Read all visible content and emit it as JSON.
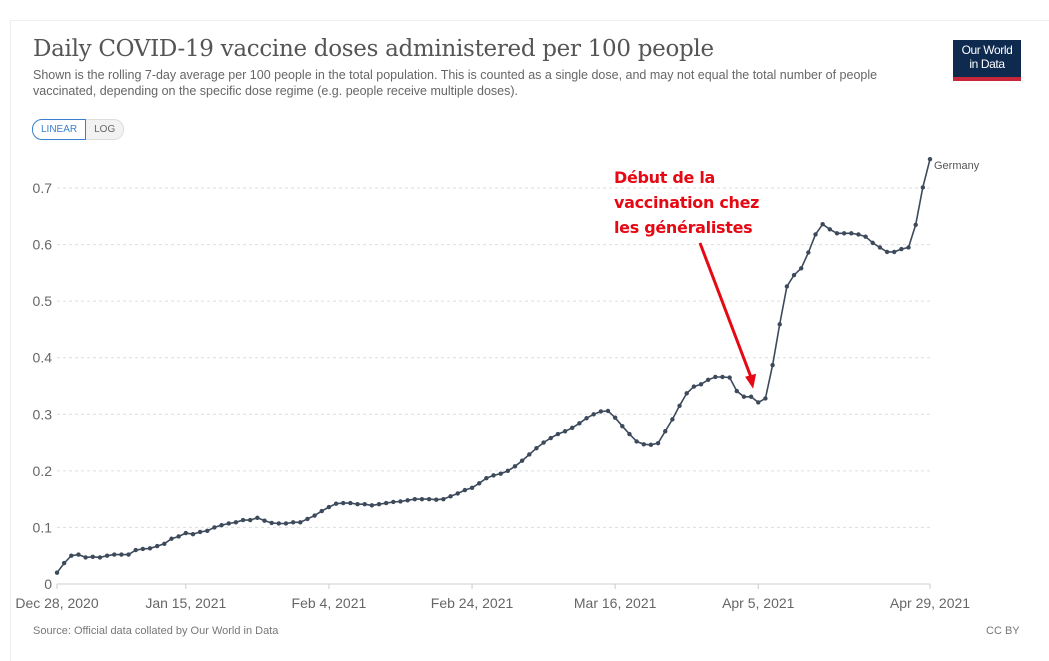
{
  "header": {
    "title": "Daily COVID-19 vaccine doses administered per 100 people",
    "subtitle": "Shown is the rolling 7-day average per 100 people in the total population. This is counted as a single dose, and may not equal the total number of people vaccinated, depending on the specific dose regime (e.g. people receive multiple doses).",
    "logo_line1": "Our World",
    "logo_line2": "in Data"
  },
  "scale_toggle": {
    "linear": "LINEAR",
    "log": "LOG",
    "selected": "LINEAR"
  },
  "annotation": {
    "lines": [
      "Début de la",
      "vaccination chez",
      "les généralistes"
    ],
    "color": "#e50914"
  },
  "footer": {
    "source": "Source: Official data collated by Our World in Data",
    "license": "CC BY"
  },
  "chart_data": {
    "type": "line",
    "title": "Daily COVID-19 vaccine doses administered per 100 people",
    "xlabel": "",
    "ylabel": "",
    "x_start": "2020-12-28",
    "x_end": "2021-04-29",
    "x_step": "1 day",
    "ylim": [
      0,
      0.75
    ],
    "yticks": [
      0,
      0.1,
      0.2,
      0.3,
      0.4,
      0.5,
      0.6,
      0.7
    ],
    "ytick_labels": [
      "0",
      "0.1",
      "0.2",
      "0.3",
      "0.4",
      "0.5",
      "0.6",
      "0.7"
    ],
    "xticks": [
      {
        "index": 0,
        "label": "Dec 28, 2020"
      },
      {
        "index": 18,
        "label": "Jan 15, 2021"
      },
      {
        "index": 38,
        "label": "Feb 4, 2021"
      },
      {
        "index": 58,
        "label": "Feb 24, 2021"
      },
      {
        "index": 78,
        "label": "Mar 16, 2021"
      },
      {
        "index": 98,
        "label": "Apr 5, 2021"
      },
      {
        "index": 122,
        "label": "Apr 29, 2021"
      }
    ],
    "grid": "horizontal dotted",
    "series": [
      {
        "name": "Germany",
        "color": "#3d4a5c",
        "values": [
          0.02,
          0.037,
          0.05,
          0.052,
          0.047,
          0.048,
          0.047,
          0.05,
          0.052,
          0.052,
          0.052,
          0.06,
          0.062,
          0.063,
          0.067,
          0.071,
          0.08,
          0.084,
          0.09,
          0.088,
          0.092,
          0.094,
          0.1,
          0.104,
          0.107,
          0.109,
          0.113,
          0.113,
          0.117,
          0.112,
          0.108,
          0.107,
          0.107,
          0.109,
          0.109,
          0.115,
          0.121,
          0.129,
          0.136,
          0.142,
          0.143,
          0.143,
          0.141,
          0.141,
          0.139,
          0.141,
          0.143,
          0.145,
          0.146,
          0.148,
          0.15,
          0.15,
          0.15,
          0.149,
          0.15,
          0.155,
          0.16,
          0.166,
          0.17,
          0.178,
          0.187,
          0.192,
          0.195,
          0.2,
          0.208,
          0.218,
          0.229,
          0.24,
          0.25,
          0.258,
          0.265,
          0.27,
          0.276,
          0.284,
          0.293,
          0.3,
          0.305,
          0.306,
          0.294,
          0.279,
          0.265,
          0.252,
          0.247,
          0.246,
          0.249,
          0.27,
          0.291,
          0.315,
          0.337,
          0.349,
          0.353,
          0.361,
          0.366,
          0.366,
          0.365,
          0.341,
          0.331,
          0.331,
          0.321,
          0.328,
          0.387,
          0.459,
          0.526,
          0.546,
          0.558,
          0.586,
          0.618,
          0.636,
          0.627,
          0.62,
          0.62,
          0.62,
          0.618,
          0.614,
          0.603,
          0.595,
          0.587,
          0.587,
          0.592,
          0.595,
          0.635,
          0.701,
          0.751
        ]
      }
    ],
    "annotation": {
      "text": "Début de la vaccination chez les généralistes",
      "points_to_index": 97
    }
  }
}
